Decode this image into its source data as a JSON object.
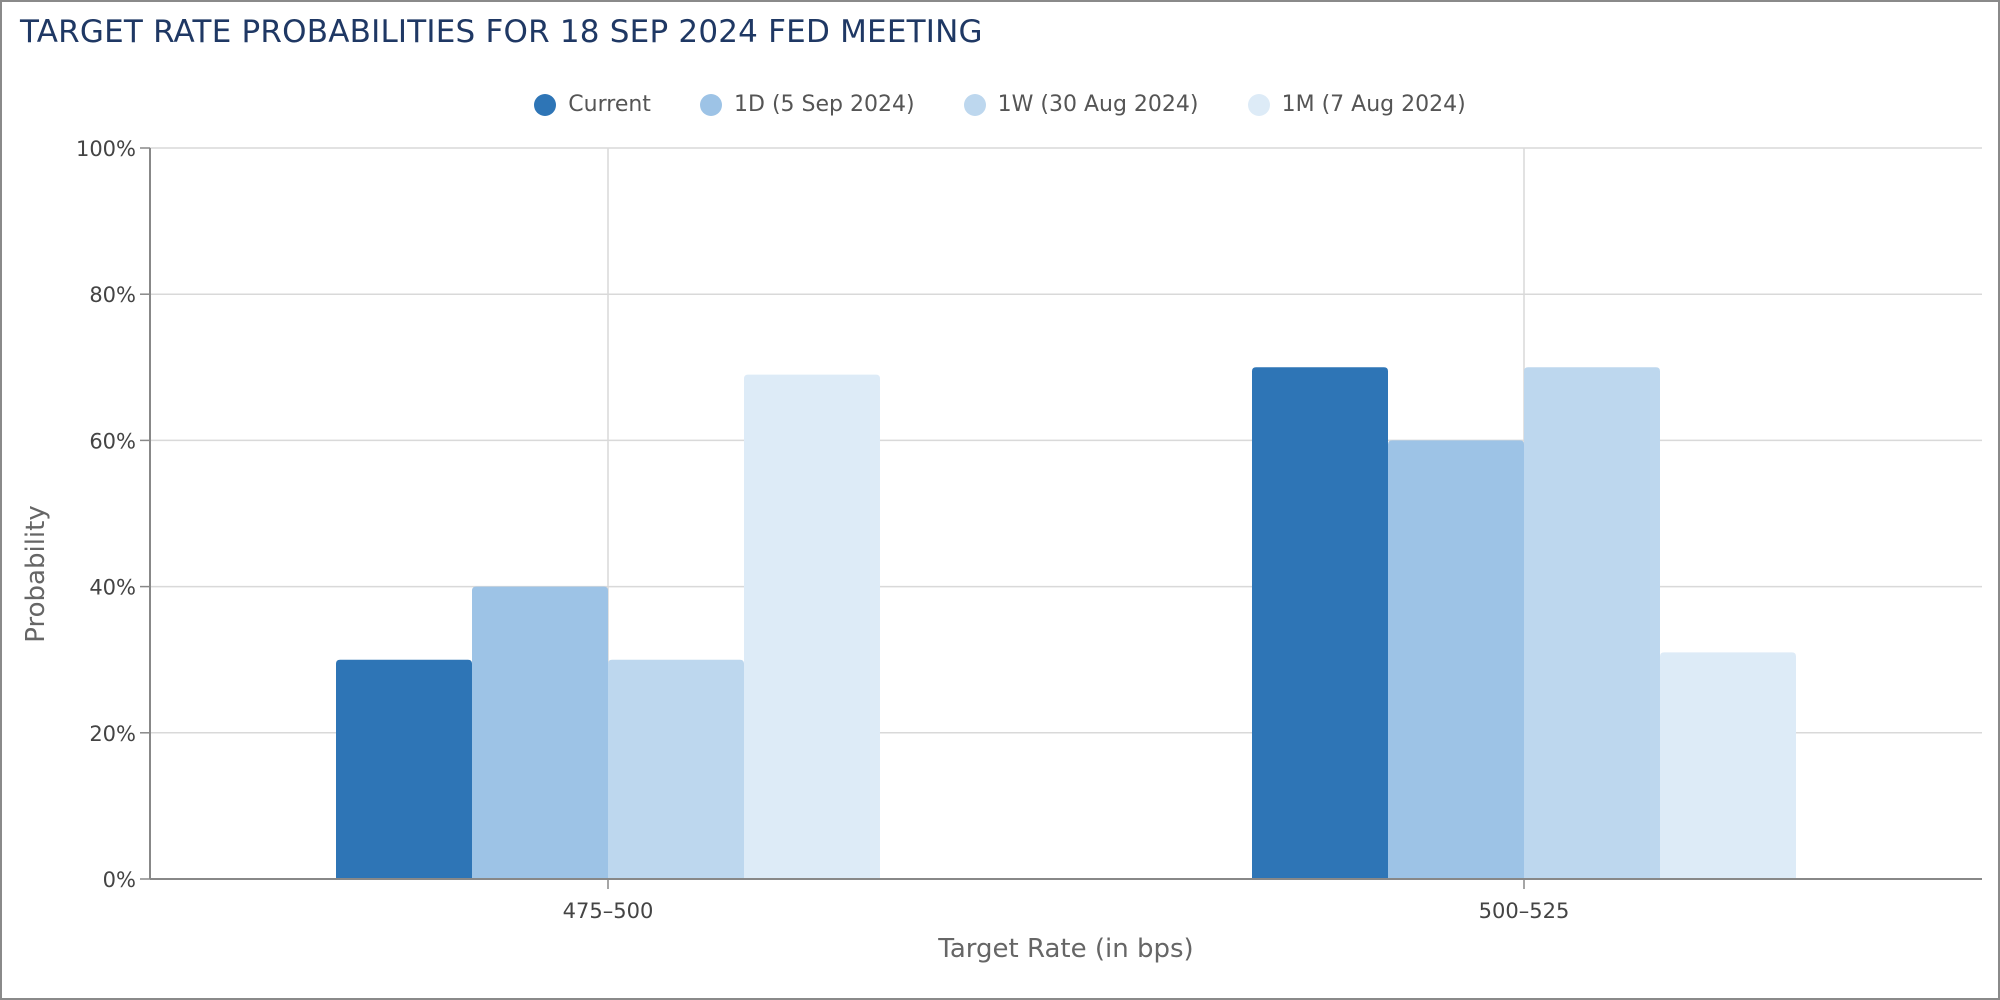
{
  "chart_data": {
    "type": "bar",
    "title": "TARGET RATE PROBABILITIES FOR 18 SEP 2024 FED MEETING",
    "xlabel": "Target Rate (in bps)",
    "ylabel": "Probability",
    "categories": [
      "475-500",
      "500-525"
    ],
    "series": [
      {
        "name": "Current",
        "color": "#2e75b6",
        "values": [
          30,
          70
        ]
      },
      {
        "name": "1D (5 Sep 2024)",
        "color": "#9dc3e6",
        "values": [
          40,
          60
        ]
      },
      {
        "name": "1W (30 Aug 2024)",
        "color": "#bdd7ee",
        "values": [
          30,
          70
        ]
      },
      {
        "name": "1M (7 Aug 2024)",
        "color": "#ddebf7",
        "values": [
          69,
          31
        ]
      }
    ],
    "ylim": [
      0,
      100
    ],
    "yticks": [
      "0%",
      "20%",
      "40%",
      "60%",
      "80%",
      "100%"
    ],
    "grid": true,
    "legend_position": "top-center"
  }
}
